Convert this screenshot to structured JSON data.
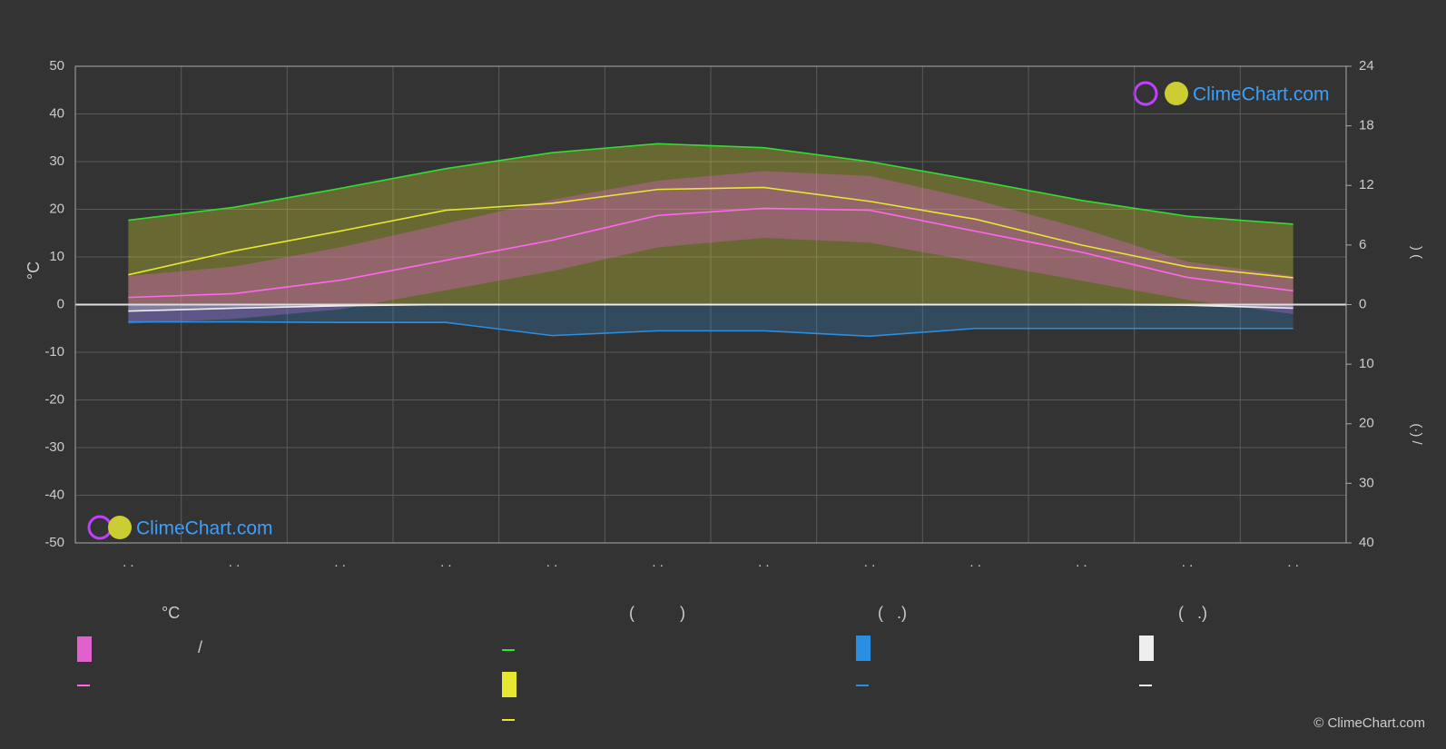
{
  "chart_data": {
    "type": "climate",
    "ylabel": "°C",
    "y2label": ")  (",
    "y3label": "(·)  /",
    "categories": [
      ". .",
      ". .",
      ". .",
      ". .",
      ". .",
      ". .",
      ". .",
      ". .",
      ". .",
      ". .",
      ". .",
      ". ."
    ],
    "ylim": [
      -50,
      50
    ],
    "yticks": [
      -50,
      -40,
      -30,
      -20,
      -10,
      0,
      10,
      20,
      30,
      40,
      50
    ],
    "y2lim": [
      0,
      24
    ],
    "y2ticks": [
      0,
      6,
      12,
      18,
      24
    ],
    "y3lim": [
      0,
      40
    ],
    "y3ticks": [
      10,
      20,
      30,
      40
    ],
    "grid": true,
    "temp_max": {
      "color": "#e060d0",
      "values": [
        6,
        8,
        12,
        17,
        22,
        26,
        28,
        27,
        22,
        16,
        9,
        6
      ]
    },
    "temp_min": {
      "color": "#e060d0",
      "values": [
        -4,
        -3,
        -1,
        3,
        7,
        12,
        14,
        13,
        9,
        5,
        1,
        -2
      ]
    },
    "series": [
      {
        "color": "#33dd33",
        "axis": "y2",
        "values": [
          8.5,
          9.8,
          11.7,
          13.7,
          15.3,
          16.2,
          15.8,
          14.4,
          12.5,
          10.5,
          8.9,
          8.1
        ]
      },
      {
        "color": "#e6e633",
        "axis": "y2",
        "values": [
          3.0,
          5.4,
          7.4,
          9.5,
          10.2,
          11.6,
          11.8,
          10.4,
          8.6,
          6.0,
          3.8,
          2.7
        ]
      },
      {
        "color": "#ff66ee",
        "values": [
          1.5,
          2.3,
          5.1,
          9.3,
          13.5,
          18.7,
          20.2,
          19.8,
          15.4,
          11.0,
          5.7,
          2.9
        ]
      },
      {
        "color": "#2a8fe0",
        "axis": "y3",
        "values": [
          2.9,
          2.9,
          3.0,
          3.0,
          5.2,
          4.4,
          4.4,
          5.3,
          4.0,
          4.0,
          4.0,
          4.0
        ]
      },
      {
        "color": "#eeeeee",
        "axis": "y3",
        "values": [
          1.1,
          0.6,
          0.2,
          0,
          0,
          0,
          0,
          0,
          0,
          0,
          0.1,
          0.6
        ]
      }
    ],
    "legend": {
      "headers": [
        "°C",
        "(          )",
        "(   .)",
        "(   .)"
      ],
      "text": "/"
    },
    "logo": "ClimeChart.com",
    "copyright": "© ClimeChart.com"
  }
}
